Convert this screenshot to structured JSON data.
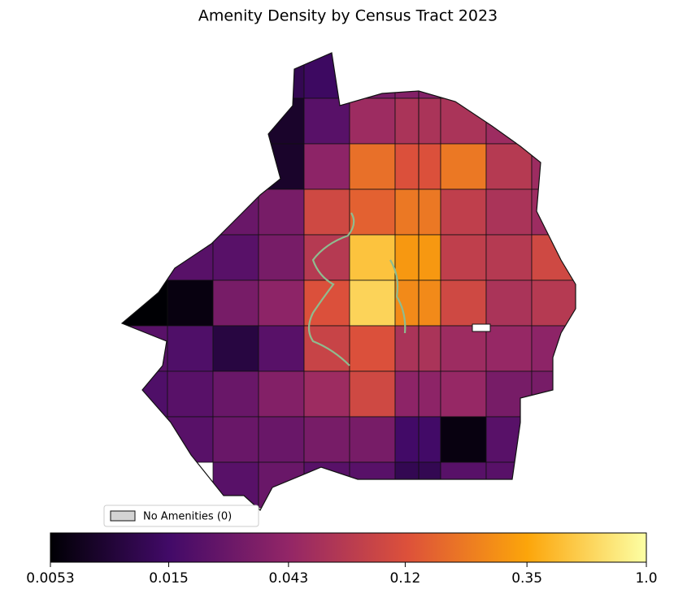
{
  "title": "Amenity Density by Census Tract 2023",
  "legend": {
    "label": "No Amenities (0)",
    "color": "#d3d3d3"
  },
  "colorbar": {
    "scale": "log",
    "lim": [
      0.0053,
      1.0
    ],
    "ticks": [
      0.0053,
      0.015,
      0.043,
      0.12,
      0.35,
      {
        "value": 1.0,
        "label": "1.0"
      }
    ],
    "colormap": [
      "#000004",
      "#420a68",
      "#932667",
      "#dd513a",
      "#fca50a",
      "#fcffa4"
    ]
  },
  "map": {
    "values": [
      [
        null,
        null,
        null,
        0.012,
        0.014,
        0.03,
        0.035,
        null,
        null,
        null
      ],
      [
        null,
        null,
        null,
        0.008,
        0.02,
        0.05,
        0.06,
        0.06,
        0.05,
        null
      ],
      [
        null,
        null,
        null,
        0.008,
        0.04,
        0.18,
        0.12,
        0.2,
        0.07,
        0.05
      ],
      [
        null,
        null,
        0.025,
        0.03,
        0.1,
        0.15,
        0.2,
        0.08,
        0.06,
        0.05
      ],
      [
        null,
        0.02,
        0.02,
        0.03,
        0.07,
        0.5,
        0.3,
        0.08,
        0.07,
        0.1
      ],
      [
        0.0053,
        0.006,
        0.03,
        0.04,
        0.12,
        0.6,
        0.25,
        0.1,
        0.06,
        0.07
      ],
      [
        0.02,
        0.018,
        0.01,
        0.02,
        0.09,
        0.12,
        0.06,
        0.05,
        0.045,
        0.04
      ],
      [
        0.018,
        0.02,
        0.025,
        0.035,
        0.05,
        0.1,
        0.04,
        0.045,
        0.03,
        0.03
      ],
      [
        null,
        0.02,
        0.025,
        0.025,
        0.03,
        0.03,
        0.015,
        0.006,
        0.02,
        null
      ],
      [
        null,
        null,
        0.02,
        0.025,
        0.02,
        0.02,
        0.012,
        0.02,
        0.02,
        null
      ]
    ]
  }
}
